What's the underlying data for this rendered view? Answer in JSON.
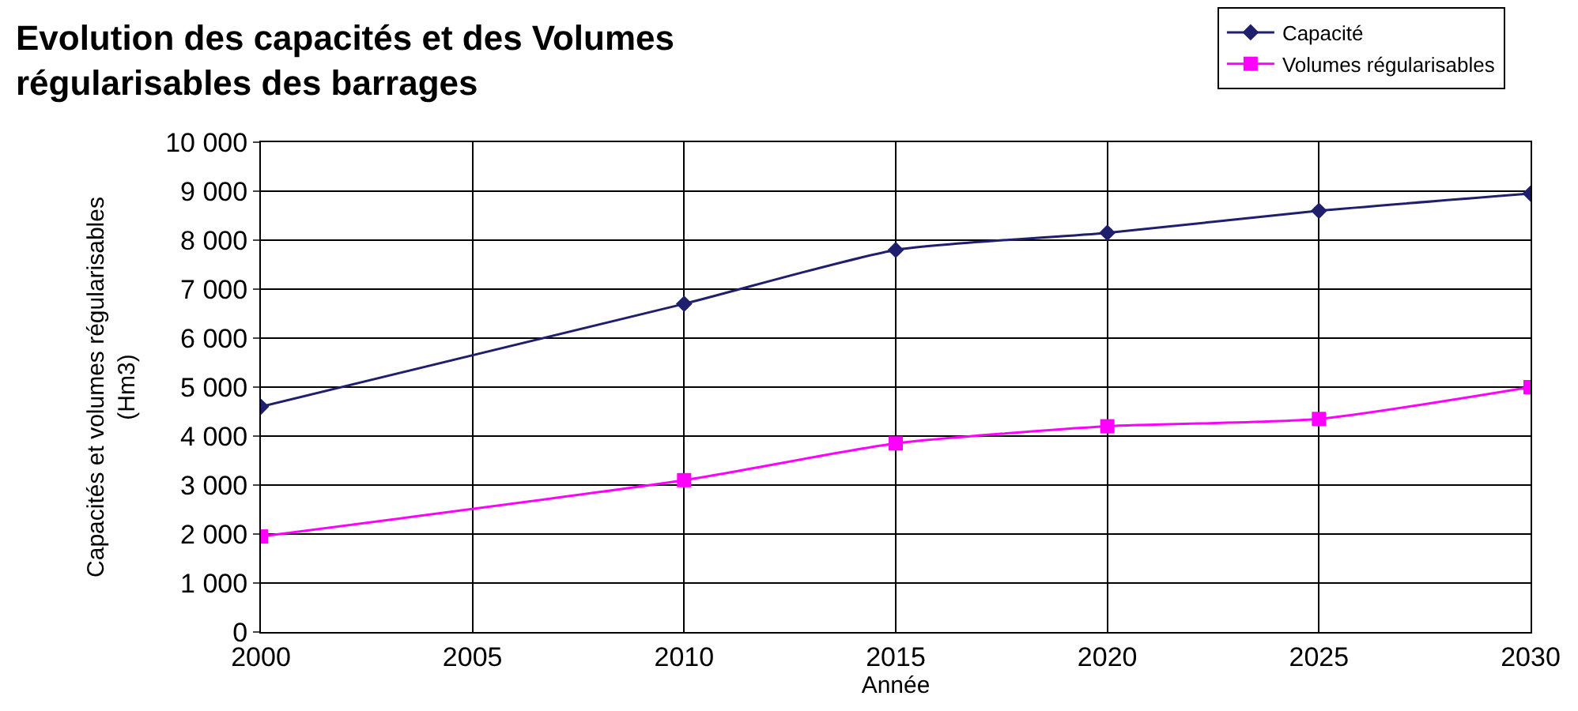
{
  "chart_data": {
    "type": "line",
    "title": "Evolution des capacités et des Volumes\nrégularisables des barrages",
    "xlabel": "Année",
    "ylabel": "Capacités et volumes régularisables\n(Hm3)",
    "x": [
      2000,
      2010,
      2015,
      2020,
      2025,
      2030
    ],
    "series": [
      {
        "name": "Capacité",
        "color": "#1f1f6e",
        "marker": "diamond",
        "values": [
          4600,
          6700,
          7800,
          8150,
          8600,
          8950
        ]
      },
      {
        "name": "Volumes régularisables",
        "color": "#ff00ff",
        "marker": "square",
        "values": [
          1950,
          3100,
          3850,
          4200,
          4350,
          5000
        ]
      }
    ],
    "xlim": [
      2000,
      2030
    ],
    "xticks": [
      2000,
      2005,
      2010,
      2015,
      2020,
      2025,
      2030
    ],
    "ylim": [
      0,
      10000
    ],
    "yticks": [
      0,
      {
        "value": 1000,
        "label": "1 000"
      },
      {
        "value": 2000,
        "label": "2 000"
      },
      {
        "value": 3000,
        "label": "3 000"
      },
      {
        "value": 4000,
        "label": "4 000"
      },
      {
        "value": 5000,
        "label": "5 000"
      },
      {
        "value": 6000,
        "label": "6 000"
      },
      {
        "value": 7000,
        "label": "7 000"
      },
      {
        "value": 8000,
        "label": "8 000"
      },
      {
        "value": 9000,
        "label": "9 000"
      },
      {
        "value": 10000,
        "label": "10 000"
      }
    ],
    "grid": true,
    "legend": "top right",
    "line_style": "solid"
  }
}
